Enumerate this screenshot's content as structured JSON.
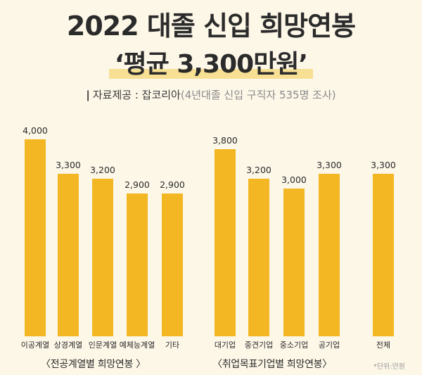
{
  "header": {
    "title": "2022 대졸 신입 희망연봉",
    "subtitle": "‘평균 3,300만원’",
    "source_label": "자료제공 : 잡코리아",
    "source_note": "(4년대졸 신입 구직자 535명 조사)"
  },
  "chart_data": {
    "type": "bar",
    "bar_color": "#f3b724",
    "background": "#fdf7e8",
    "unit_note": "*단위:만원",
    "groups": [
      {
        "label": "〈전공계열별 희망연봉 〉",
        "categories": [
          "이공계열",
          "상경계열",
          "인문계열",
          "예체능계열",
          "기타"
        ],
        "values": [
          4000,
          3300,
          3200,
          2900,
          2900
        ],
        "value_labels": [
          "4,000",
          "3,300",
          "3,200",
          "2,900",
          "2,900"
        ]
      },
      {
        "label": "〈취업목표기업별 희망연봉〉",
        "categories": [
          "대기업",
          "중견기업",
          "중소기업",
          "공기업",
          "전체"
        ],
        "values": [
          3800,
          3200,
          3000,
          3300,
          3300
        ],
        "value_labels": [
          "3,800",
          "3,200",
          "3,000",
          "3,300",
          "3,300"
        ]
      }
    ]
  }
}
